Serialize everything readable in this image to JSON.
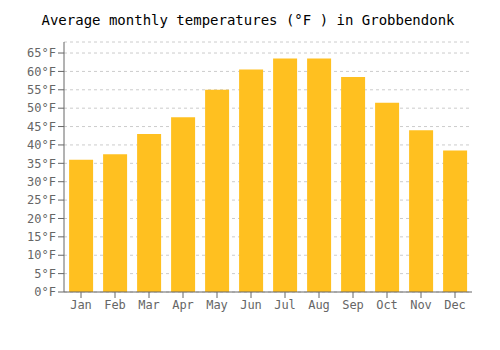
{
  "chart_data": {
    "type": "bar",
    "title": "Average monthly temperatures (°F ) in Grobbendonk",
    "categories": [
      "Jan",
      "Feb",
      "Mar",
      "Apr",
      "May",
      "Jun",
      "Jul",
      "Aug",
      "Sep",
      "Oct",
      "Nov",
      "Dec"
    ],
    "values": [
      36,
      37.5,
      43,
      47.5,
      55,
      60.5,
      63.5,
      63.5,
      58.5,
      51.5,
      44,
      38.5
    ],
    "color": "#FFC020",
    "ylim": [
      0,
      68
    ],
    "yticks": [
      {
        "value": 0,
        "label": "0°F"
      },
      {
        "value": 5,
        "label": "5°F"
      },
      {
        "value": 10,
        "label": "10°F"
      },
      {
        "value": 15,
        "label": "15°F"
      },
      {
        "value": 20,
        "label": "20°F"
      },
      {
        "value": 25,
        "label": "25°F"
      },
      {
        "value": 30,
        "label": "30°F"
      },
      {
        "value": 35,
        "label": "35°F"
      },
      {
        "value": 40,
        "label": "40°F"
      },
      {
        "value": 45,
        "label": "45°F"
      },
      {
        "value": 50,
        "label": "50°F"
      },
      {
        "value": 55,
        "label": "55°F"
      },
      {
        "value": 60,
        "label": "60°F"
      },
      {
        "value": 65,
        "label": "65°F"
      }
    ],
    "grid": true
  }
}
